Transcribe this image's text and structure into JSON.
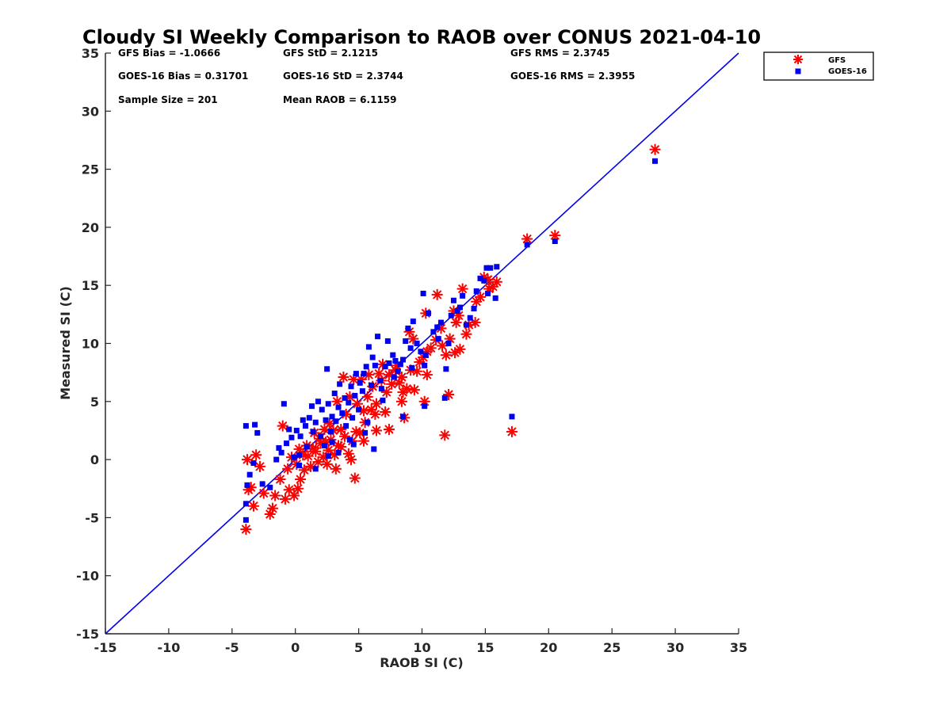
{
  "chart_data": {
    "type": "scatter",
    "title": "Cloudy SI Weekly Comparison to RAOB over CONUS 2021-04-10",
    "xlabel": "RAOB SI (C)",
    "ylabel": "Measured SI (C)",
    "xlim": [
      -15,
      35
    ],
    "ylim": [
      -15,
      35
    ],
    "xticks": [
      -15,
      -10,
      -5,
      0,
      5,
      10,
      15,
      20,
      25,
      30,
      35
    ],
    "yticks": [
      -15,
      -10,
      -5,
      0,
      5,
      10,
      15,
      20,
      25,
      30,
      35
    ],
    "xtick_labels": [
      "-15",
      "-10",
      "-5",
      "0",
      "5",
      "10",
      "15",
      "20",
      "25",
      "30",
      "35"
    ],
    "ytick_labels": [
      "-15",
      "-10",
      "-5",
      "0",
      "5",
      "10",
      "15",
      "20",
      "25",
      "30",
      "35"
    ],
    "grid": false,
    "legend_position": "top-right",
    "reference_line": {
      "from": [
        -15,
        -15
      ],
      "to": [
        35,
        35
      ],
      "color": "#0000ee"
    },
    "stats": [
      {
        "text": "GFS Bias = -1.0666"
      },
      {
        "text": "GFS StD = 2.1215"
      },
      {
        "text": "GFS RMS = 2.3745"
      },
      {
        "text": "GOES-16 Bias = 0.31701"
      },
      {
        "text": "GOES-16 StD = 2.3744"
      },
      {
        "text": "GOES-16 RMS = 2.3955"
      },
      {
        "text": "Sample Size = 201"
      },
      {
        "text": "Mean RAOB = 6.1159"
      }
    ],
    "series": [
      {
        "name": "GFS",
        "marker": "asterisk",
        "color": "#ff0000",
        "points": [
          [
            28.4,
            26.7
          ],
          [
            20.5,
            19.3
          ],
          [
            18.3,
            19.0
          ],
          [
            17.1,
            2.4
          ],
          [
            11.8,
            2.1
          ],
          [
            12.1,
            5.6
          ],
          [
            10.2,
            5.0
          ],
          [
            15.9,
            15.3
          ],
          [
            15.6,
            14.9
          ],
          [
            15.2,
            15.5
          ],
          [
            14.9,
            15.7
          ],
          [
            15.3,
            14.7
          ],
          [
            14.6,
            14.0
          ],
          [
            14.3,
            13.6
          ],
          [
            14.2,
            11.8
          ],
          [
            13.7,
            11.6
          ],
          [
            13.5,
            10.8
          ],
          [
            13.2,
            14.7
          ],
          [
            12.9,
            12.4
          ],
          [
            12.7,
            11.8
          ],
          [
            12.5,
            12.8
          ],
          [
            13.0,
            9.5
          ],
          [
            12.6,
            9.2
          ],
          [
            12.2,
            10.4
          ],
          [
            11.9,
            9.0
          ],
          [
            11.5,
            11.3
          ],
          [
            11.2,
            14.2
          ],
          [
            11.6,
            9.8
          ],
          [
            11.1,
            10.3
          ],
          [
            10.7,
            9.6
          ],
          [
            10.3,
            12.6
          ],
          [
            10.4,
            9.3
          ],
          [
            10.1,
            8.8
          ],
          [
            9.8,
            8.4
          ],
          [
            9.6,
            7.6
          ],
          [
            9.3,
            10.4
          ],
          [
            9.0,
            11.0
          ],
          [
            9.1,
            7.7
          ],
          [
            8.8,
            6.1
          ],
          [
            8.5,
            5.8
          ],
          [
            8.6,
            3.6
          ],
          [
            8.4,
            7.1
          ],
          [
            8.2,
            6.6
          ],
          [
            8.0,
            8.1
          ],
          [
            7.9,
            7.7
          ],
          [
            7.6,
            6.5
          ],
          [
            7.4,
            7.3
          ],
          [
            7.2,
            5.8
          ],
          [
            7.1,
            4.1
          ],
          [
            6.9,
            8.2
          ],
          [
            6.8,
            6.8
          ],
          [
            6.6,
            7.4
          ],
          [
            6.4,
            4.8
          ],
          [
            6.3,
            3.9
          ],
          [
            6.1,
            6.3
          ],
          [
            6.0,
            4.3
          ],
          [
            5.8,
            7.3
          ],
          [
            5.7,
            5.4
          ],
          [
            5.5,
            3.2
          ],
          [
            5.4,
            4.2
          ],
          [
            5.2,
            6.9
          ],
          [
            5.1,
            2.3
          ],
          [
            4.9,
            4.8
          ],
          [
            4.8,
            2.4
          ],
          [
            4.6,
            6.9
          ],
          [
            4.5,
            1.6
          ],
          [
            4.3,
            5.4
          ],
          [
            4.2,
            0.5
          ],
          [
            4.0,
            3.9
          ],
          [
            3.9,
            2.0
          ],
          [
            3.8,
            7.1
          ],
          [
            3.6,
            2.6
          ],
          [
            3.4,
            1.2
          ],
          [
            3.3,
            5.0
          ],
          [
            3.1,
            0.4
          ],
          [
            3.0,
            2.5
          ],
          [
            2.8,
            1.7
          ],
          [
            2.7,
            3.1
          ],
          [
            2.6,
            0.8
          ],
          [
            2.4,
            1.5
          ],
          [
            2.3,
            2.6
          ],
          [
            2.2,
            0.2
          ],
          [
            2.0,
            1.4
          ],
          [
            1.9,
            1.8
          ],
          [
            1.8,
            -0.2
          ],
          [
            1.6,
            0.7
          ],
          [
            1.5,
            2.3
          ],
          [
            1.4,
            1.0
          ],
          [
            1.2,
            -0.6
          ],
          [
            1.0,
            0.3
          ],
          [
            0.9,
            1.2
          ],
          [
            0.7,
            -0.9
          ],
          [
            0.6,
            0.4
          ],
          [
            0.4,
            -1.7
          ],
          [
            0.3,
            0.9
          ],
          [
            0.2,
            -2.5
          ],
          [
            0.1,
            -0.4
          ],
          [
            -0.1,
            -3.1
          ],
          [
            -0.3,
            0.2
          ],
          [
            -0.5,
            -2.6
          ],
          [
            -0.6,
            -0.8
          ],
          [
            -0.8,
            -3.4
          ],
          [
            -1.0,
            2.9
          ],
          [
            -1.2,
            -1.7
          ],
          [
            -1.6,
            -3.1
          ],
          [
            -1.8,
            -4.2
          ],
          [
            -2.0,
            -4.7
          ],
          [
            -2.5,
            -2.9
          ],
          [
            -2.8,
            -0.6
          ],
          [
            -3.1,
            0.4
          ],
          [
            -3.3,
            -4.0
          ],
          [
            -3.5,
            -2.4
          ],
          [
            -3.7,
            -2.6
          ],
          [
            -3.9,
            -6.0
          ],
          [
            -3.8,
            0.0
          ],
          [
            4.7,
            -1.6
          ],
          [
            3.2,
            -0.8
          ],
          [
            2.5,
            -0.4
          ],
          [
            8.4,
            5.0
          ],
          [
            10.4,
            7.3
          ],
          [
            9.4,
            6.0
          ],
          [
            7.4,
            2.6
          ],
          [
            6.4,
            2.5
          ],
          [
            5.4,
            1.6
          ],
          [
            4.4,
            0.0
          ],
          [
            3.6,
            1.1
          ]
        ]
      },
      {
        "name": "GOES-16",
        "marker": "square",
        "color": "#0000ee",
        "points": [
          [
            28.4,
            25.7
          ],
          [
            20.5,
            18.8
          ],
          [
            18.3,
            18.5
          ],
          [
            17.1,
            3.7
          ],
          [
            11.8,
            5.3
          ],
          [
            10.2,
            4.6
          ],
          [
            8.5,
            3.7
          ],
          [
            15.9,
            16.6
          ],
          [
            15.4,
            16.5
          ],
          [
            15.1,
            16.5
          ],
          [
            14.9,
            15.4
          ],
          [
            15.8,
            13.9
          ],
          [
            15.2,
            14.3
          ],
          [
            14.6,
            15.6
          ],
          [
            14.3,
            14.5
          ],
          [
            14.1,
            13.0
          ],
          [
            13.8,
            12.2
          ],
          [
            13.5,
            11.6
          ],
          [
            13.2,
            14.1
          ],
          [
            13.0,
            13.1
          ],
          [
            12.8,
            12.8
          ],
          [
            12.5,
            13.7
          ],
          [
            12.3,
            12.4
          ],
          [
            12.1,
            10.0
          ],
          [
            11.9,
            7.8
          ],
          [
            11.5,
            11.8
          ],
          [
            11.2,
            11.4
          ],
          [
            11.3,
            10.4
          ],
          [
            10.9,
            11.0
          ],
          [
            10.5,
            12.6
          ],
          [
            10.1,
            14.3
          ],
          [
            10.3,
            9.0
          ],
          [
            10.2,
            8.1
          ],
          [
            9.9,
            9.3
          ],
          [
            9.6,
            10.0
          ],
          [
            9.3,
            11.9
          ],
          [
            9.1,
            9.6
          ],
          [
            8.9,
            11.3
          ],
          [
            8.7,
            10.2
          ],
          [
            8.5,
            8.6
          ],
          [
            8.3,
            8.2
          ],
          [
            8.1,
            7.6
          ],
          [
            7.9,
            8.5
          ],
          [
            7.7,
            9.0
          ],
          [
            7.4,
            8.3
          ],
          [
            7.3,
            10.2
          ],
          [
            7.1,
            8.0
          ],
          [
            6.9,
            5.1
          ],
          [
            6.7,
            6.8
          ],
          [
            6.5,
            10.6
          ],
          [
            6.3,
            8.1
          ],
          [
            6.1,
            8.8
          ],
          [
            6.0,
            6.4
          ],
          [
            5.8,
            9.7
          ],
          [
            5.6,
            8.0
          ],
          [
            5.4,
            7.4
          ],
          [
            5.3,
            5.9
          ],
          [
            5.1,
            6.6
          ],
          [
            5.0,
            4.3
          ],
          [
            4.8,
            7.4
          ],
          [
            4.7,
            5.5
          ],
          [
            4.5,
            3.6
          ],
          [
            4.4,
            6.3
          ],
          [
            4.2,
            4.9
          ],
          [
            4.0,
            2.9
          ],
          [
            3.9,
            5.3
          ],
          [
            3.7,
            4.0
          ],
          [
            3.5,
            6.5
          ],
          [
            3.4,
            4.5
          ],
          [
            3.2,
            3.3
          ],
          [
            3.1,
            5.7
          ],
          [
            2.9,
            3.7
          ],
          [
            2.8,
            2.4
          ],
          [
            2.6,
            4.8
          ],
          [
            2.5,
            7.8
          ],
          [
            2.4,
            3.4
          ],
          [
            2.3,
            1.2
          ],
          [
            2.1,
            4.3
          ],
          [
            2.0,
            2.0
          ],
          [
            1.8,
            5.0
          ],
          [
            1.6,
            3.2
          ],
          [
            1.4,
            2.4
          ],
          [
            1.3,
            4.6
          ],
          [
            1.1,
            3.6
          ],
          [
            0.9,
            1.1
          ],
          [
            0.8,
            2.9
          ],
          [
            0.6,
            3.4
          ],
          [
            0.4,
            2.0
          ],
          [
            0.3,
            0.4
          ],
          [
            0.1,
            2.5
          ],
          [
            -0.1,
            0.2
          ],
          [
            -0.3,
            1.9
          ],
          [
            -0.5,
            2.6
          ],
          [
            -0.7,
            1.4
          ],
          [
            -0.9,
            4.8
          ],
          [
            -1.1,
            0.6
          ],
          [
            -1.3,
            1.0
          ],
          [
            -1.5,
            0.0
          ],
          [
            -2.0,
            -2.4
          ],
          [
            -2.6,
            -2.1
          ],
          [
            -3.0,
            2.3
          ],
          [
            -3.2,
            3.0
          ],
          [
            -3.3,
            -0.3
          ],
          [
            -3.6,
            -1.3
          ],
          [
            -3.8,
            -2.2
          ],
          [
            -3.9,
            2.9
          ],
          [
            -3.9,
            -3.8
          ],
          [
            -3.9,
            -5.2
          ],
          [
            6.2,
            0.9
          ],
          [
            5.5,
            2.3
          ],
          [
            4.3,
            1.7
          ],
          [
            3.4,
            0.6
          ],
          [
            2.6,
            0.3
          ],
          [
            1.6,
            -0.8
          ],
          [
            0.3,
            -0.5
          ],
          [
            5.7,
            3.2
          ],
          [
            6.8,
            6.1
          ],
          [
            7.8,
            7.1
          ],
          [
            9.2,
            7.9
          ],
          [
            4.6,
            1.3
          ],
          [
            2.9,
            1.5
          ]
        ]
      }
    ]
  }
}
